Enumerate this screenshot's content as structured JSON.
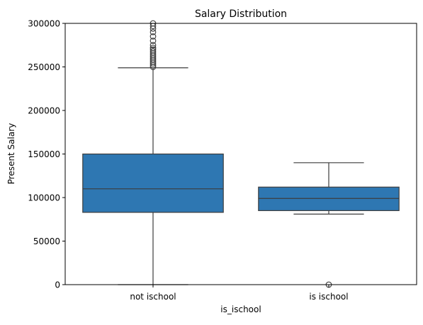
{
  "chart_data": {
    "type": "box",
    "title": "Salary Distribution",
    "xlabel": "is_ischool",
    "ylabel": "Present Salary",
    "ylim": [
      0,
      300000
    ],
    "yticks": [
      "0",
      "50000",
      "100000",
      "150000",
      "200000",
      "250000",
      "300000"
    ],
    "ytick_values": [
      0,
      50000,
      100000,
      150000,
      200000,
      250000,
      300000
    ],
    "categories": [
      "not ischool",
      "is ischool"
    ],
    "boxes": [
      {
        "category": "not ischool",
        "whisker_low": 0,
        "q1": 83000,
        "median": 110000,
        "q3": 150000,
        "whisker_high": 249000,
        "outliers": [
          250000,
          252000,
          254000,
          256000,
          258000,
          260000,
          262000,
          264000,
          266000,
          268000,
          270000,
          272000,
          275000,
          280000,
          285000,
          290000,
          294000,
          297000,
          300000
        ]
      },
      {
        "category": "is ischool",
        "whisker_low": 81000,
        "q1": 85000,
        "median": 99000,
        "q3": 112000,
        "whisker_high": 140000,
        "outliers": [
          0
        ]
      }
    ],
    "grid": false,
    "legend": "none",
    "box_color": "#2e77b2",
    "line_color": "#3d3d3d"
  }
}
